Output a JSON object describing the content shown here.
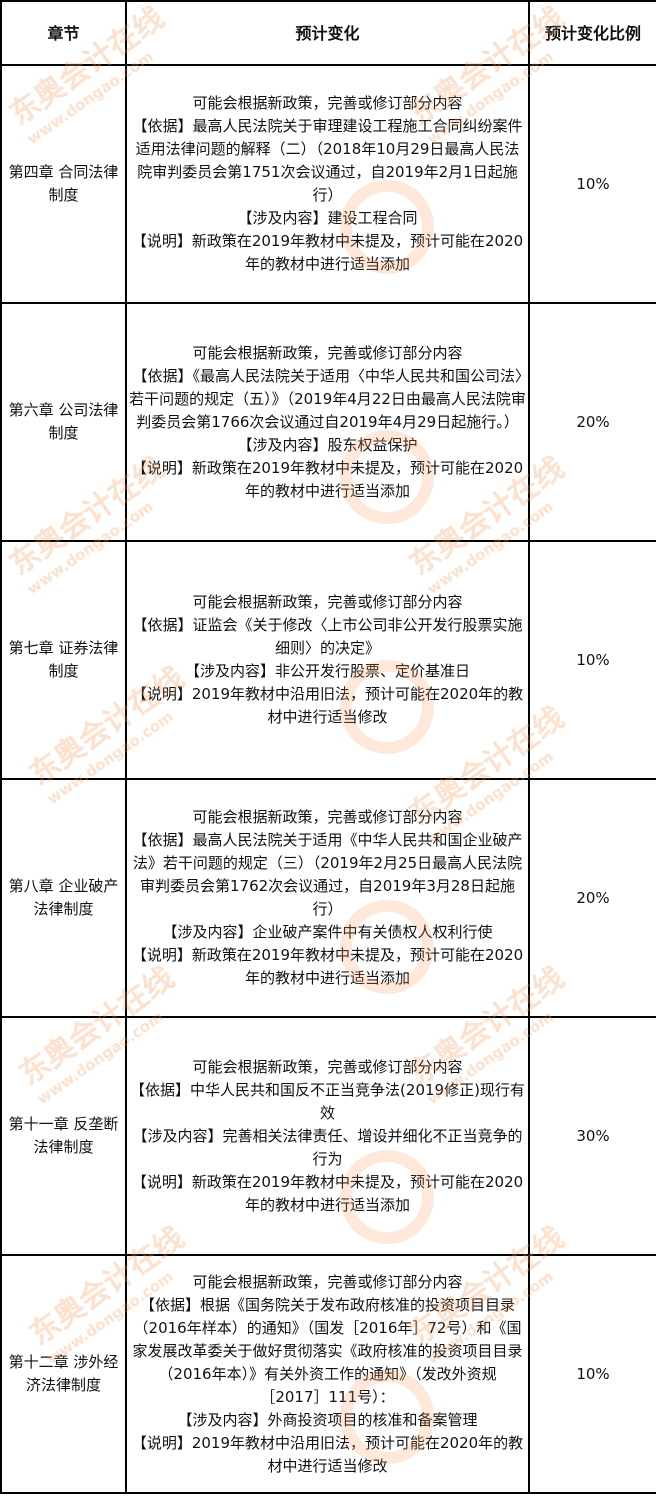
{
  "headers": [
    "章节",
    "预计变化",
    "预计变化比例"
  ],
  "rows": [
    {
      "chapter": "第四章  合同法律制度",
      "lines": [
        "可能会根据新政策，完善或修订部分内容",
        "【依据】最高人民法院关于审理建设工程施工合同纠纷案件适用法律问题的解释（二）（2018年10月29日最高人民法院审判委员会第1751次会议通过，自2019年2月1日起施行）",
        "【涉及内容】建设工程合同",
        "【说明】新政策在2019年教材中未提及，预计可能在2020年的教材中进行适当添加"
      ],
      "ratio": "10%"
    },
    {
      "chapter": "第六章  公司法律制度",
      "lines": [
        "可能会根据新政策，完善或修订部分内容",
        "【依据】《最高人民法院关于适用〈中华人民共和国公司法〉若干问题的规定（五）》（2019年4月22日由最高人民法院审判委员会第1766次会议通过自2019年4月29日起施行。）",
        "【涉及内容】股东权益保护",
        "【说明】新政策在2019年教材中未提及，预计可能在2020年的教材中进行适当添加"
      ],
      "ratio": "20%"
    },
    {
      "chapter": "第七章  证券法律制度",
      "lines": [
        "可能会根据新政策，完善或修订部分内容",
        "【依据】证监会《关于修改〈上市公司非公开发行股票实施细则〉的决定》",
        "【涉及内容】非公开发行股票、定价基准日",
        "【说明】2019年教材中沿用旧法，预计可能在2020年的教材中进行适当修改"
      ],
      "ratio": "10%"
    },
    {
      "chapter": "第八章  企业破产法律制度",
      "lines": [
        "可能会根据新政策，完善或修订部分内容",
        "【依据】最高人民法院关于适用《中华人民共和国企业破产法》若干问题的规定（三）（2019年2月25日最高人民法院审判委员会第1762次会议通过，自2019年3月28日起施行）",
        "【涉及内容】企业破产案件中有关债权人权利行使",
        "【说明】新政策在2019年教材中未提及，预计可能在2020年的教材中进行适当添加"
      ],
      "ratio": "20%"
    },
    {
      "chapter": "第十一章  反垄断法律制度",
      "lines": [
        "可能会根据新政策，完善或修订部分内容",
        "【依据】中华人民共和国反不正当竞争法(2019修正)现行有效",
        "【涉及内容】完善相关法律责任、增设并细化不正当竞争的行为",
        "【说明】新政策在2019年教材中未提及，预计可能在2020年的教材中进行适当添加"
      ],
      "ratio": "30%"
    },
    {
      "chapter": "第十二章  涉外经济法律制度",
      "lines": [
        "可能会根据新政策，完善或修订部分内容",
        "【依据】根据《国务院关于发布政府核准的投资项目目录（2016年样本）的通知》（国发［2016年］72号）和《国家发展改革委关于做好贯彻落实《政府核准的投资项目目录（2016年本）》有关外资工作的通知》（发改外资规［2017］111号）：",
        "【涉及内容】外商投资项目的核准和备案管理",
        "【说明】2019年教材中沿用旧法，预计可能在2020年的教材中进行适当修改"
      ],
      "ratio": "10%"
    }
  ],
  "watermark": {
    "brand": "东奥会计在线",
    "url": "www.dongao.com",
    "color": "#F59650"
  }
}
